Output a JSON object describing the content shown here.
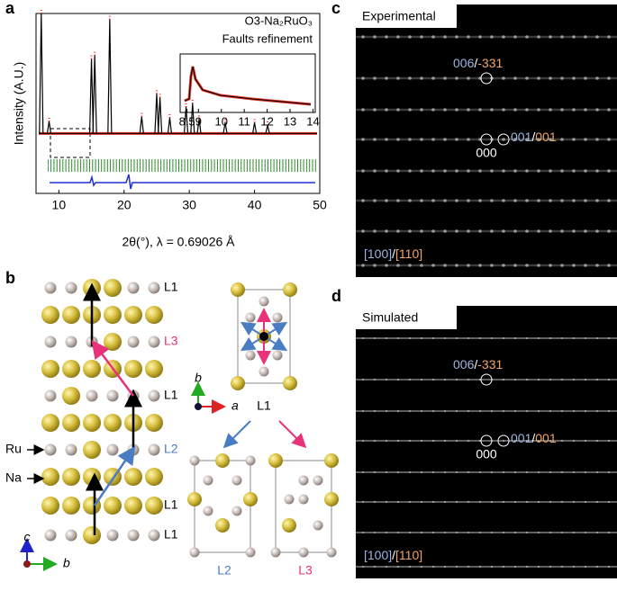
{
  "panels": {
    "a": {
      "label": "a",
      "chart_data": {
        "type": "stem",
        "title": "O3-Na₂RuO₃",
        "subtitle": "Faults refinement",
        "ylabel": "Intensity (A.U.)",
        "xlabel": "2θ(°), λ = 0.69026 Å",
        "x": [
          7.3,
          8.5,
          15.0,
          15.5,
          17.8,
          22.7,
          25.0,
          25.5,
          27.0,
          29.5,
          30.5,
          31.5,
          35.5,
          40.0,
          42.0
        ],
        "values": [
          100,
          10,
          62,
          65,
          95,
          14,
          33,
          30,
          13,
          22,
          25,
          12,
          9,
          9,
          7
        ],
        "color": "#000000",
        "xlim": [
          6.5,
          50
        ],
        "xticks": [
          10,
          20,
          30,
          40,
          50
        ],
        "ylim": [
          -50,
          100
        ],
        "inset": {
          "xlim": [
            8.2,
            14.1
          ],
          "xticks": [
            8.5,
            9,
            10,
            11,
            12,
            13,
            14
          ]
        }
      }
    },
    "b": {
      "label": "b",
      "layers": [
        "L1",
        "L3",
        "L1",
        "L2",
        "L1",
        "L1"
      ],
      "atoms": [
        "Ru",
        "Na"
      ],
      "axes_left": [
        "c",
        "b"
      ],
      "axes_right": [
        "b",
        "a"
      ],
      "top_cell": "L1",
      "cells": [
        "L2",
        "L3"
      ]
    },
    "c": {
      "label": "c",
      "title": "Experimental",
      "spots": [
        [
          "006",
          "/",
          "-331"
        ],
        [
          "001",
          "/",
          "001"
        ]
      ],
      "origin": "000",
      "zone": [
        "[100]",
        "/",
        "[110]"
      ]
    },
    "d": {
      "label": "d",
      "title": "Simulated",
      "spots": [
        [
          "006",
          "/",
          "-331"
        ],
        [
          "001",
          "/",
          "001"
        ]
      ],
      "origin": "000",
      "zone": [
        "[100]",
        "/",
        "[110]"
      ]
    }
  }
}
